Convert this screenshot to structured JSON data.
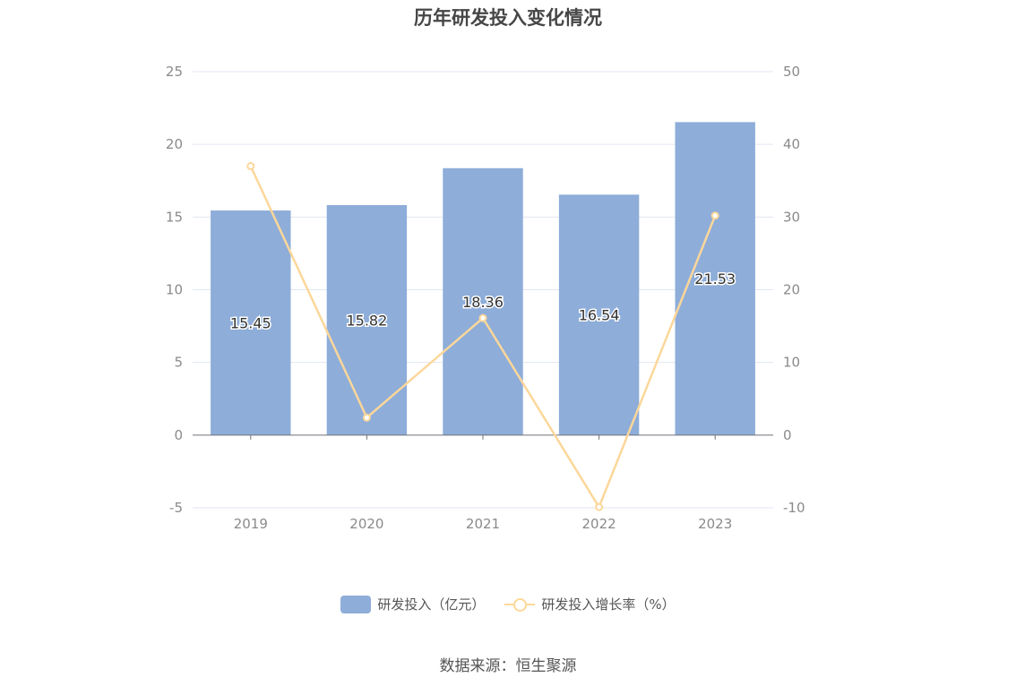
{
  "chart_data": {
    "title": "历年研发投入变化情况",
    "type": "bar+line",
    "categories": [
      "2019",
      "2020",
      "2021",
      "2022",
      "2023"
    ],
    "series": [
      {
        "name": "研发投入（亿元）",
        "type": "bar",
        "axis": "left",
        "values": [
          15.45,
          15.82,
          18.36,
          16.54,
          21.53
        ],
        "color": "#8eadd9"
      },
      {
        "name": "研发投入增长率（%）",
        "type": "line",
        "axis": "right",
        "values": [
          37.0,
          2.4,
          16.1,
          -9.9,
          30.2
        ],
        "color": "#fcd79a"
      }
    ],
    "y_left": {
      "min": -5,
      "max": 25,
      "ticks": [
        -5,
        0,
        5,
        10,
        15,
        20,
        25
      ]
    },
    "y_right": {
      "min": -10,
      "max": 50,
      "ticks": [
        -10,
        0,
        10,
        20,
        30,
        40,
        50
      ]
    },
    "grid": true,
    "legend_position": "bottom"
  },
  "source": "数据来源：恒生聚源"
}
